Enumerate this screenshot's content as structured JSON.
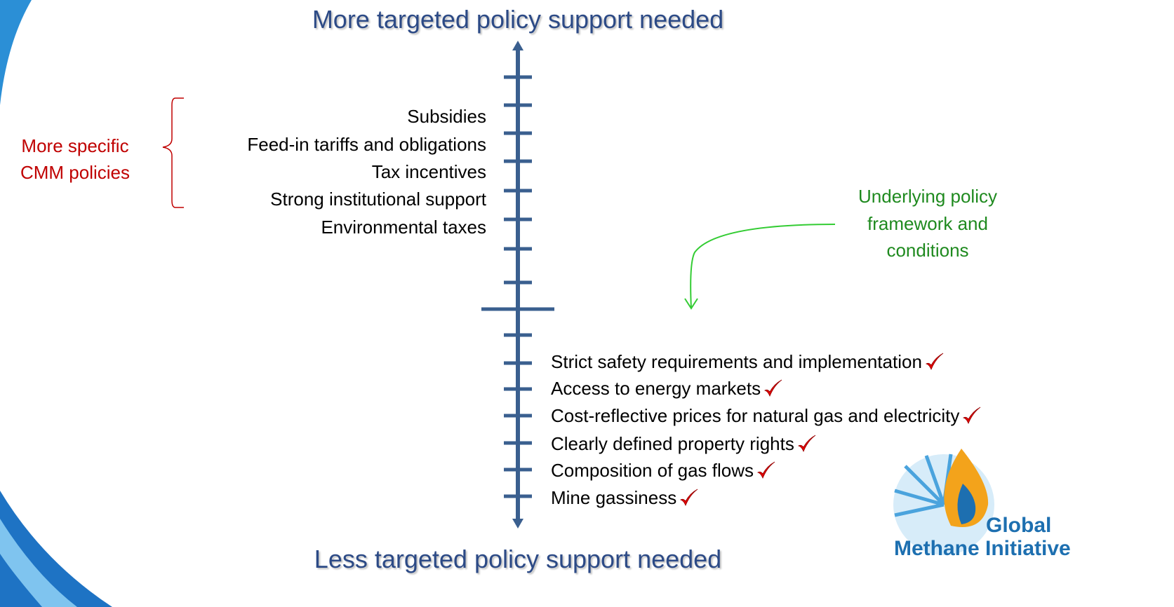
{
  "header": {
    "top": "More targeted policy support needed",
    "bottom": "Less targeted policy support needed"
  },
  "specific_policies": {
    "label": [
      "More specific",
      "CMM policies"
    ],
    "items": [
      "Subsidies",
      "Feed-in tariffs and obligations",
      "Tax incentives",
      "Strong institutional support",
      "Environmental taxes"
    ]
  },
  "framework": {
    "label": [
      "Underlying policy",
      "framework and",
      "conditions"
    ],
    "items": [
      "Strict safety requirements and implementation",
      "Access to energy markets",
      "Cost-reflective prices for natural gas and electricity",
      "Clearly defined property rights",
      "Composition of gas flows",
      "Mine gassiness"
    ]
  },
  "logo": {
    "line1": "Global",
    "line2": "Methane Initiative"
  }
}
